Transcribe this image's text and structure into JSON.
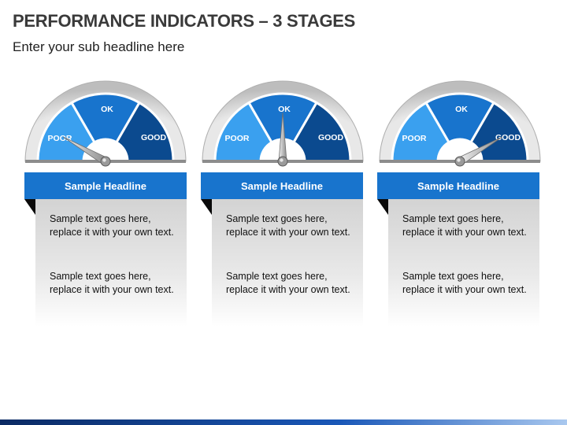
{
  "title": "PERFORMANCE INDICATORS – 3 STAGES",
  "subtitle": "Enter your sub headline here",
  "gauge_labels": {
    "poor": "POOR",
    "ok": "OK",
    "good": "GOOD"
  },
  "colors": {
    "poor": "#3aa0ef",
    "ok": "#1874cd",
    "good": "#0b4a8f",
    "rim": "#c9c9c9",
    "headline": "#1874cd"
  },
  "stages": [
    {
      "needle_level": "poor",
      "headline": "Sample Headline",
      "text1": "Sample text goes here, replace it with your own text.",
      "text2": "Sample text goes here, replace it with your own text."
    },
    {
      "needle_level": "ok",
      "headline": "Sample Headline",
      "text1": "Sample text goes here, replace it with your own text.",
      "text2": "Sample text goes here, replace it with your own text."
    },
    {
      "needle_level": "good",
      "headline": "Sample Headline",
      "text1": "Sample text goes here, replace it with your own text.",
      "text2": "Sample text goes here, replace it with your own text."
    }
  ]
}
